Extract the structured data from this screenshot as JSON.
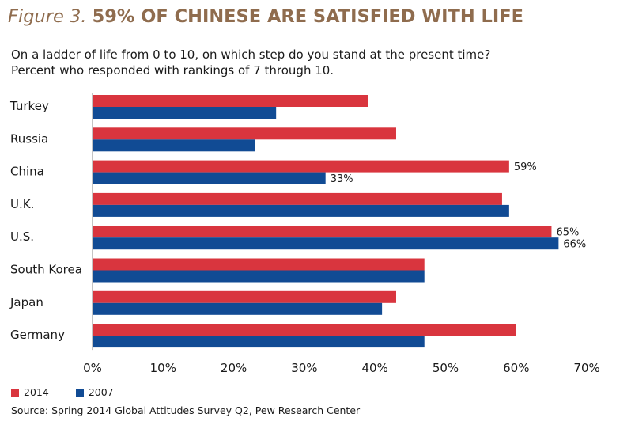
{
  "figure_label": "Figure 3.",
  "headline": "59% OF CHINESE ARE SATISFIED WITH LIFE",
  "subtitle_lines": [
    "On a ladder of life from 0 to 10, on which step do you stand at the present time?",
    "Percent who responded with rankings of 7 through 10."
  ],
  "source": "Source: Spring 2014 Global Attitudes Survey Q2, Pew Research Center",
  "colors": {
    "series_2014": "#d9353e",
    "series_2007": "#114b94",
    "title": "#8f6c4e"
  },
  "chart_data": {
    "type": "bar",
    "orientation": "horizontal",
    "categories": [
      "Turkey",
      "Russia",
      "China",
      "U.K.",
      "U.S.",
      "South Korea",
      "Japan",
      "Germany"
    ],
    "series": [
      {
        "name": "2014",
        "values": [
          39,
          43,
          59,
          58,
          65,
          47,
          43,
          60
        ]
      },
      {
        "name": "2007",
        "values": [
          26,
          23,
          33,
          59,
          66,
          47,
          41,
          47
        ]
      }
    ],
    "data_labels": [
      {
        "category": "China",
        "series": "2014",
        "text": "59%"
      },
      {
        "category": "China",
        "series": "2007",
        "text": "33%"
      },
      {
        "category": "U.S.",
        "series": "2014",
        "text": "65%"
      },
      {
        "category": "U.S.",
        "series": "2007",
        "text": "66%"
      }
    ],
    "xlim": [
      0,
      70
    ],
    "x_ticks": [
      "0%",
      "10%",
      "20%",
      "30%",
      "40%",
      "50%",
      "60%",
      "70%"
    ],
    "grid": false,
    "legend_position": "bottom-left"
  }
}
